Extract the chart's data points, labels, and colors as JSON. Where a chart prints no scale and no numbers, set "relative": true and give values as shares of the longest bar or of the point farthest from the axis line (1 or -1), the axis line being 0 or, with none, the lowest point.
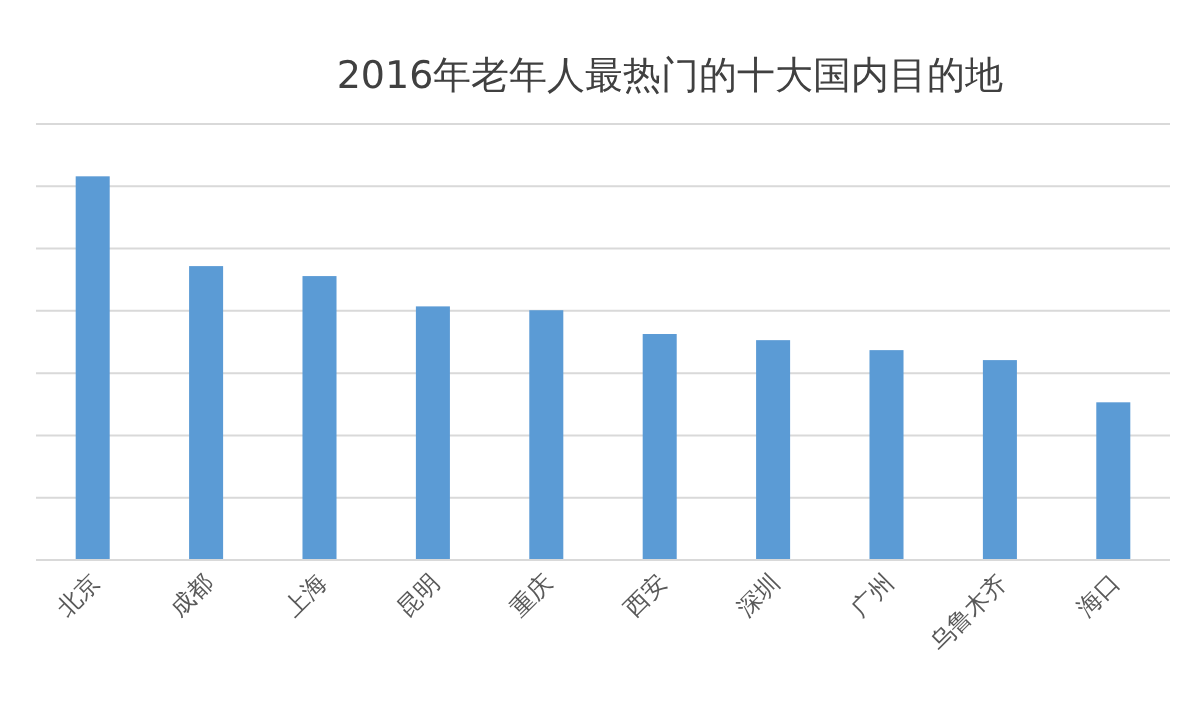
{
  "chart_data": {
    "type": "bar",
    "title": "2016年老年人最热门的十大国内目的地",
    "categories": [
      "北京",
      "成都",
      "上海",
      "昆明",
      "重庆",
      "西安",
      "深圳",
      "广州",
      "乌鲁木齐",
      "海口"
    ],
    "values": [
      1,
      0.766,
      0.74,
      0.661,
      0.651,
      0.589,
      0.573,
      0.547,
      0.521,
      0.411
    ],
    "relative": true,
    "color": "#5b9bd5",
    "grid": "y"
  }
}
